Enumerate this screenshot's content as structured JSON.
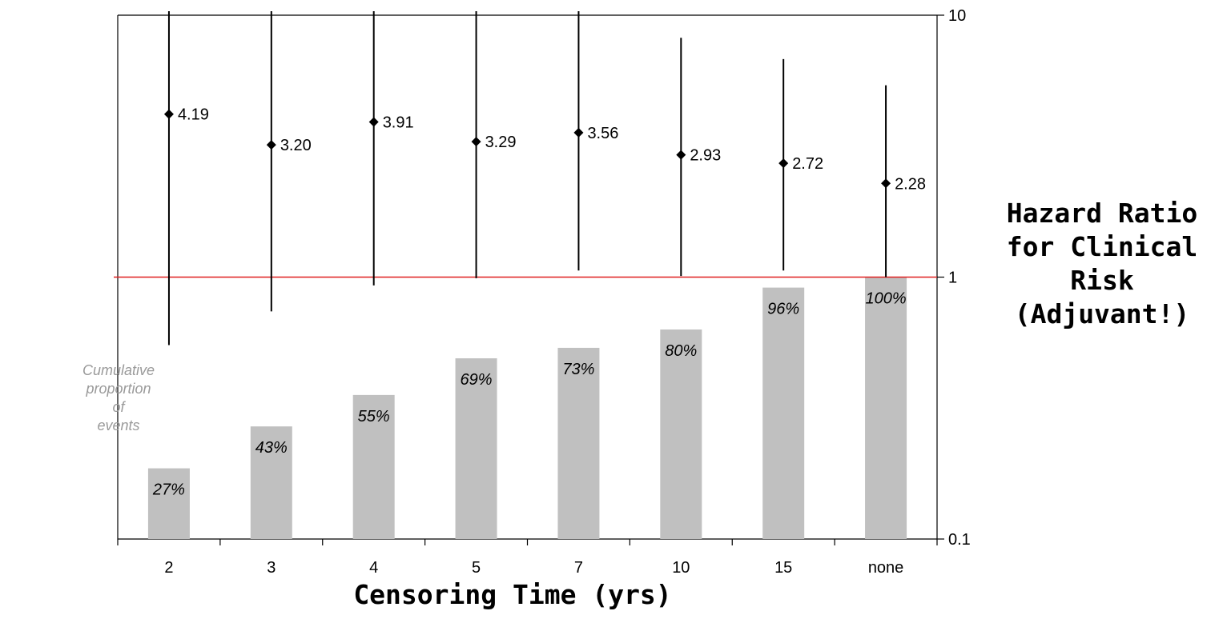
{
  "chart_data": {
    "type": "bar",
    "categories": [
      "2",
      "3",
      "4",
      "5",
      "7",
      "10",
      "15",
      "none"
    ],
    "bars": {
      "values": [
        0.27,
        0.43,
        0.55,
        0.69,
        0.73,
        0.8,
        0.96,
        1.0
      ],
      "labels": [
        "27%",
        "43%",
        "55%",
        "69%",
        "73%",
        "80%",
        "96%",
        "100%"
      ],
      "color": "#c0c0c0"
    },
    "hazard_ratio": {
      "type": "scatter-errorbar",
      "values": [
        4.19,
        3.2,
        3.91,
        3.29,
        3.56,
        2.93,
        2.72,
        2.28
      ],
      "labels": [
        "4.19",
        "3.20",
        "3.91",
        "3.29",
        "3.56",
        "2.93",
        "2.72",
        "2.28"
      ],
      "ci_lower": [
        0.55,
        0.74,
        0.93,
        0.99,
        1.06,
        1.01,
        1.06,
        1.0
      ],
      "ci_upper": [
        11.5,
        11.5,
        11.5,
        11.5,
        11.5,
        8.2,
        6.8,
        5.4
      ],
      "color": "#000000"
    },
    "reference_line": {
      "value": 1,
      "color": "#e02020"
    },
    "right_axis": {
      "scale": "log",
      "ylim": [
        0.1,
        10
      ],
      "ticks": [
        "10",
        "1",
        "0.1"
      ]
    },
    "xlabel": "Censoring Time (yrs)",
    "ylabel": "Hazard Ratio for Clinical Risk (Adjuvant!)",
    "left_label": "Cumulative proportion of events",
    "grid": false
  }
}
